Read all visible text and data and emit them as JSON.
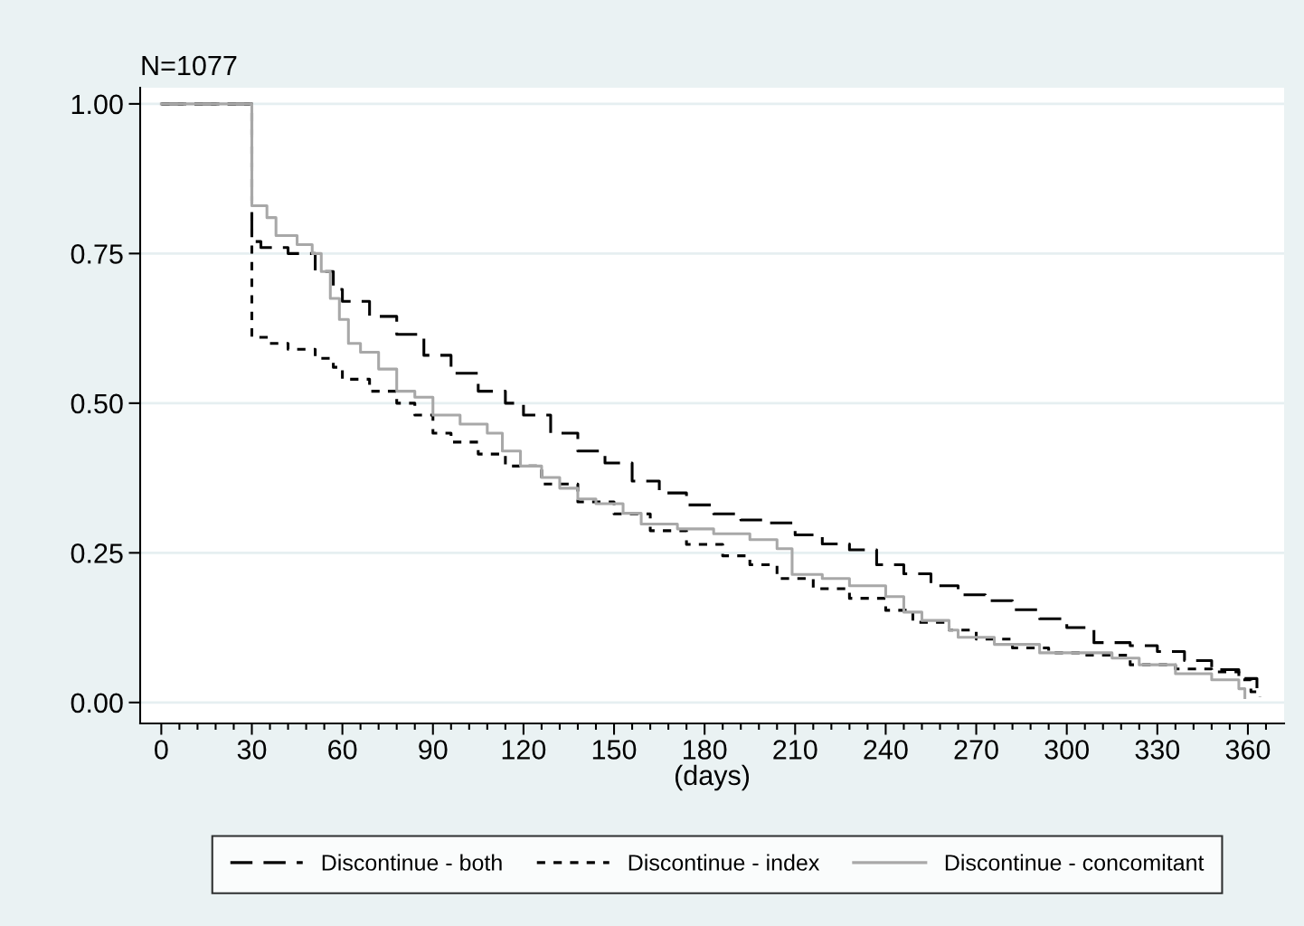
{
  "chart_data": {
    "type": "step",
    "title": "N=1077",
    "xlabel": "(days)",
    "xlim": [
      -7,
      372
    ],
    "ylim": [
      -0.035,
      1.027
    ],
    "xticks": [
      0,
      {
        "value": 6,
        "label": null
      },
      {
        "value": 12,
        "label": null
      },
      {
        "value": 18,
        "label": null
      },
      {
        "value": 24,
        "label": null
      },
      30,
      {
        "value": 36,
        "label": null
      },
      {
        "value": 42,
        "label": null
      },
      {
        "value": 48,
        "label": null
      },
      {
        "value": 54,
        "label": null
      },
      60,
      {
        "value": 66,
        "label": null
      },
      {
        "value": 72,
        "label": null
      },
      {
        "value": 78,
        "label": null
      },
      {
        "value": 84,
        "label": null
      },
      90,
      {
        "value": 96,
        "label": null
      },
      {
        "value": 102,
        "label": null
      },
      {
        "value": 108,
        "label": null
      },
      {
        "value": 114,
        "label": null
      },
      120,
      {
        "value": 126,
        "label": null
      },
      {
        "value": 132,
        "label": null
      },
      {
        "value": 138,
        "label": null
      },
      {
        "value": 144,
        "label": null
      },
      150,
      {
        "value": 156,
        "label": null
      },
      {
        "value": 162,
        "label": null
      },
      {
        "value": 168,
        "label": null
      },
      {
        "value": 174,
        "label": null
      },
      180,
      {
        "value": 186,
        "label": null
      },
      {
        "value": 192,
        "label": null
      },
      {
        "value": 198,
        "label": null
      },
      {
        "value": 204,
        "label": null
      },
      210,
      {
        "value": 216,
        "label": null
      },
      {
        "value": 222,
        "label": null
      },
      {
        "value": 228,
        "label": null
      },
      {
        "value": 234,
        "label": null
      },
      240,
      {
        "value": 246,
        "label": null
      },
      {
        "value": 252,
        "label": null
      },
      {
        "value": 258,
        "label": null
      },
      {
        "value": 264,
        "label": null
      },
      270,
      {
        "value": 276,
        "label": null
      },
      {
        "value": 282,
        "label": null
      },
      {
        "value": 288,
        "label": null
      },
      {
        "value": 294,
        "label": null
      },
      300,
      {
        "value": 306,
        "label": null
      },
      {
        "value": 312,
        "label": null
      },
      {
        "value": 318,
        "label": null
      },
      {
        "value": 324,
        "label": null
      },
      330,
      {
        "value": 336,
        "label": null
      },
      {
        "value": 342,
        "label": null
      },
      {
        "value": 348,
        "label": null
      },
      {
        "value": 354,
        "label": null
      },
      360,
      {
        "value": 366,
        "label": null
      }
    ],
    "yticks": [
      {
        "value": 0,
        "label": "0.00"
      },
      {
        "value": 0.25,
        "label": "0.25"
      },
      {
        "value": 0.5,
        "label": "0.50"
      },
      {
        "value": 0.75,
        "label": "0.75"
      },
      {
        "value": 1,
        "label": "1.00"
      }
    ],
    "grid": "y",
    "legend": "bottom",
    "series": [
      {
        "name": "Discontinue - both",
        "color": "#000000",
        "line_style": "dashed",
        "x": [
          0,
          30,
          33,
          42,
          51,
          57,
          60,
          69,
          78,
          87,
          96,
          105,
          114,
          120,
          129,
          138,
          147,
          156,
          165,
          174,
          183,
          192,
          201,
          210,
          219,
          228,
          237,
          246,
          255,
          264,
          273,
          282,
          291,
          300,
          309,
          321,
          330,
          339,
          348,
          357,
          363
        ],
        "values": [
          1,
          0.77,
          0.76,
          0.75,
          0.72,
          0.69,
          0.67,
          0.645,
          0.615,
          0.58,
          0.55,
          0.52,
          0.5,
          0.48,
          0.45,
          0.42,
          0.4,
          0.37,
          0.35,
          0.33,
          0.315,
          0.305,
          0.3,
          0.28,
          0.265,
          0.255,
          0.23,
          0.215,
          0.195,
          0.18,
          0.17,
          0.155,
          0.14,
          0.125,
          0.1,
          0.095,
          0.085,
          0.07,
          0.055,
          0.04,
          0.01
        ]
      },
      {
        "name": "Discontinue - index",
        "color": "#000000",
        "line_style": "dotted",
        "x": [
          0,
          30,
          36,
          42,
          51,
          57,
          60,
          69,
          78,
          84,
          90,
          96,
          105,
          114,
          126,
          138,
          150,
          162,
          174,
          186,
          195,
          204,
          216,
          228,
          240,
          249,
          261,
          270,
          282,
          294,
          306,
          321,
          336,
          348,
          357,
          361,
          364
        ],
        "values": [
          1,
          0.61,
          0.6,
          0.59,
          0.575,
          0.56,
          0.54,
          0.52,
          0.5,
          0.48,
          0.45,
          0.435,
          0.415,
          0.395,
          0.365,
          0.335,
          0.315,
          0.287,
          0.264,
          0.245,
          0.23,
          0.207,
          0.19,
          0.174,
          0.154,
          0.134,
          0.121,
          0.106,
          0.091,
          0.083,
          0.079,
          0.063,
          0.056,
          0.051,
          0.038,
          0.018,
          0.01
        ]
      },
      {
        "name": "Discontinue - concomitant",
        "color": "#a8a8a8",
        "line_style": "solid",
        "x": [
          0,
          30,
          35,
          38,
          45,
          50,
          53,
          56,
          59,
          62,
          66,
          72,
          78,
          84,
          90,
          99,
          108,
          113,
          119,
          126,
          132,
          138,
          144,
          153,
          159,
          171,
          183,
          195,
          204,
          209,
          219,
          228,
          240,
          246,
          252,
          261,
          264,
          276,
          291,
          315,
          324,
          336,
          348,
          357,
          359
        ],
        "values": [
          1,
          0.83,
          0.81,
          0.78,
          0.765,
          0.75,
          0.72,
          0.675,
          0.64,
          0.6,
          0.585,
          0.557,
          0.52,
          0.51,
          0.48,
          0.465,
          0.45,
          0.42,
          0.395,
          0.376,
          0.358,
          0.34,
          0.332,
          0.316,
          0.298,
          0.29,
          0.282,
          0.272,
          0.257,
          0.214,
          0.207,
          0.195,
          0.177,
          0.151,
          0.137,
          0.121,
          0.109,
          0.097,
          0.083,
          0.074,
          0.063,
          0.048,
          0.038,
          0.023,
          0.008
        ]
      }
    ]
  }
}
